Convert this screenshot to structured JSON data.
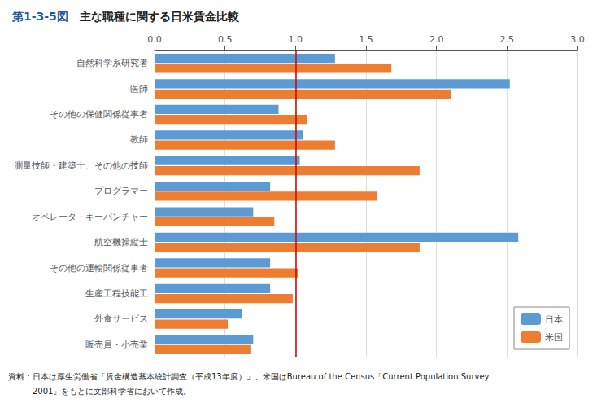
{
  "chart_data": {
    "type": "bar",
    "orientation": "horizontal",
    "title": "第1-3-5図",
    "subtitle": "　主な職種に関する日米賃金比較",
    "categories": [
      "自然科学系研究者",
      "医師",
      "その他の保健関係従事者",
      "教師",
      "測量技師・建築士、その他の技師",
      "プログラマー",
      "オペレータ・キーパンチャー",
      "航空機操縦士",
      "その他の運輸関係従事者",
      "生産工程技能工",
      "外食サービス",
      "販売員・小売業"
    ],
    "series": [
      {
        "name": "日本",
        "color": "#5B9BD5",
        "values": [
          1.28,
          2.52,
          0.88,
          1.05,
          1.03,
          0.82,
          0.7,
          2.58,
          0.82,
          0.82,
          0.62,
          0.7
        ]
      },
      {
        "name": "米国",
        "color": "#ED7D31",
        "values": [
          1.68,
          2.1,
          1.08,
          1.28,
          1.88,
          1.58,
          0.85,
          1.88,
          1.02,
          0.98,
          0.52,
          0.68
        ]
      }
    ],
    "xlim": [
      0.0,
      3.0
    ],
    "xticks": [
      {
        "value": 0.0,
        "label": "0.0"
      },
      0.5,
      {
        "value": 1.0,
        "label": "1.0"
      },
      1.5,
      {
        "value": 2.0,
        "label": "2.0"
      },
      2.5,
      {
        "value": 3.0,
        "label": "3.0"
      }
    ],
    "grid": true,
    "legend": "lower right",
    "reference_lines": [
      {
        "x": 1.0,
        "color": "#CC0000"
      }
    ],
    "annotations": [
      "資料：日本は厚生労働省「賃金構造基本統計調査（平成13年度）」、米国はBureau of the Census「Current Population Survey",
      "　　　2001」をもとに文部科学省において作成。"
    ]
  }
}
